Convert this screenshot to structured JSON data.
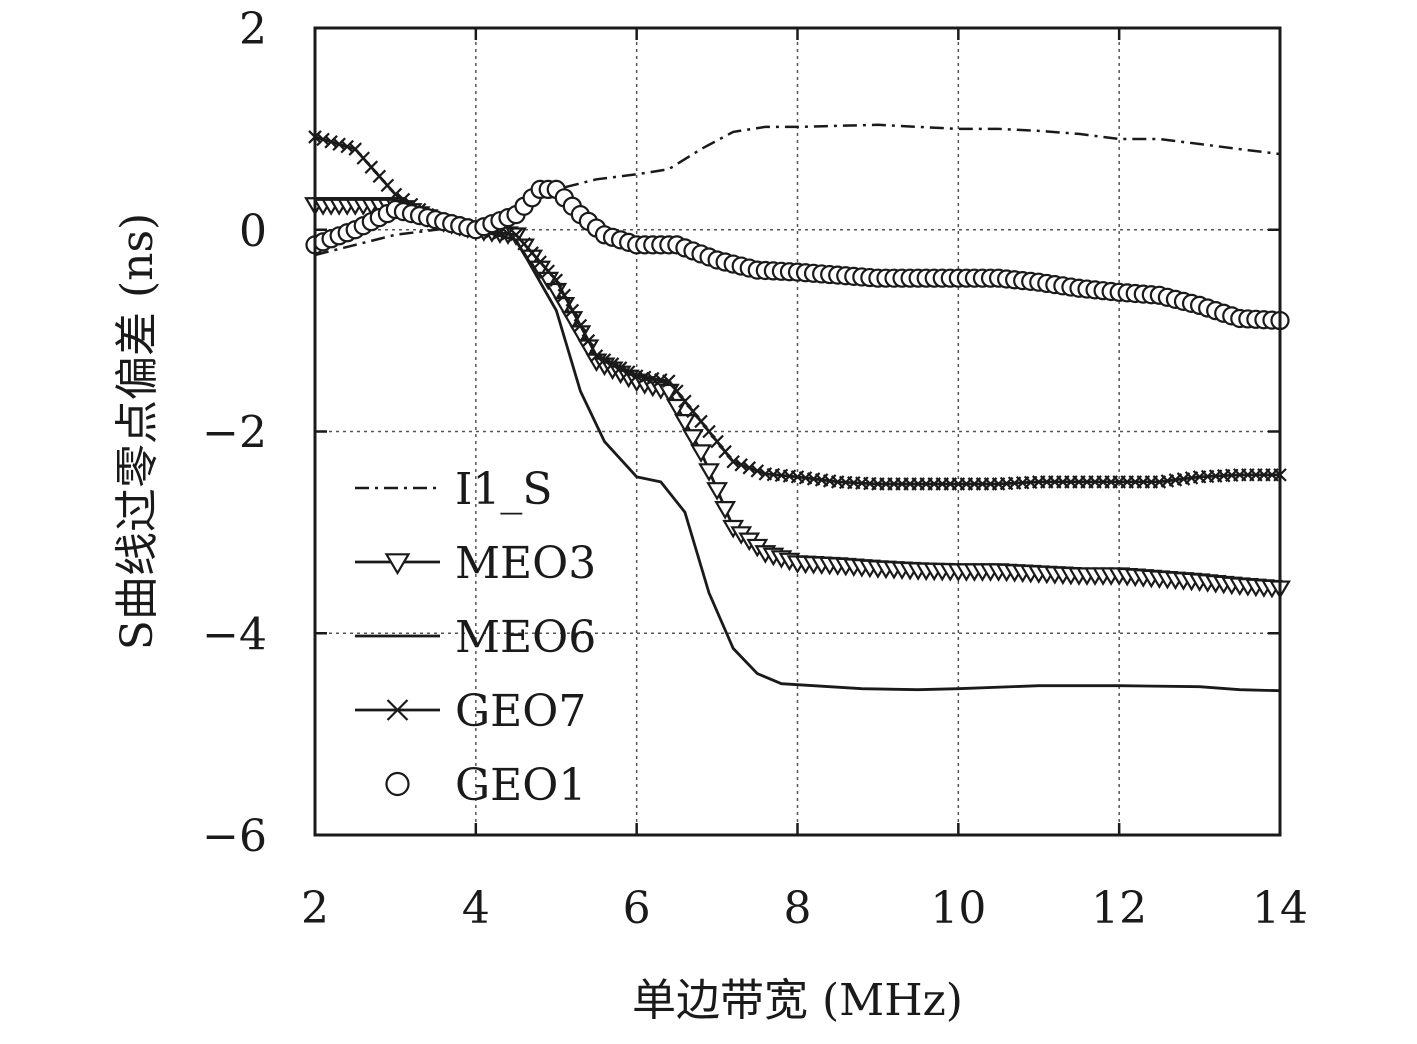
{
  "chart_data": {
    "type": "line",
    "xlabel": "单边带宽 (MHz)",
    "ylabel": "S曲线过零点偏差 (ns)",
    "xlim": [
      2,
      14
    ],
    "ylim": [
      -6,
      2
    ],
    "xticks": [
      2,
      4,
      6,
      8,
      10,
      12,
      14
    ],
    "yticks": [
      -6,
      -4,
      -2,
      0,
      2
    ],
    "xtick_labels": [
      "2",
      "4",
      "6",
      "8",
      "10",
      "12",
      "14"
    ],
    "ytick_labels": [
      "−6",
      "−4",
      "−2",
      "0",
      "2"
    ],
    "grid": true,
    "legend_position": "lower-left",
    "series": [
      {
        "name": "I1_S",
        "style": "dash-dot",
        "x": [
          2,
          2.5,
          3,
          3.5,
          4,
          4.5,
          5,
          5.5,
          6,
          6.4,
          6.8,
          7.2,
          7.6,
          8,
          8.5,
          9,
          9.5,
          10,
          10.5,
          11,
          11.5,
          12,
          12.5,
          13,
          13.5,
          14
        ],
        "y": [
          -0.25,
          -0.15,
          -0.05,
          0.0,
          0.05,
          0.2,
          0.4,
          0.5,
          0.55,
          0.6,
          0.8,
          0.97,
          1.02,
          1.02,
          1.03,
          1.04,
          1.02,
          1.0,
          1.0,
          0.98,
          0.95,
          0.9,
          0.9,
          0.85,
          0.8,
          0.75
        ]
      },
      {
        "name": "MEO3",
        "style": "solid-triangle-down",
        "x": [
          2,
          2.5,
          3,
          3.5,
          4,
          4.5,
          5,
          5.5,
          6,
          6.4,
          6.8,
          7.2,
          7.6,
          8,
          8.5,
          9,
          9.5,
          10,
          10.5,
          11,
          11.5,
          12,
          12.5,
          13,
          13.5,
          14
        ],
        "y": [
          0.25,
          0.25,
          0.25,
          0.1,
          0.0,
          -0.05,
          -0.6,
          -1.3,
          -1.5,
          -1.6,
          -2.2,
          -2.95,
          -3.2,
          -3.3,
          -3.32,
          -3.35,
          -3.37,
          -3.38,
          -3.38,
          -3.4,
          -3.42,
          -3.42,
          -3.45,
          -3.48,
          -3.52,
          -3.55
        ]
      },
      {
        "name": "MEO6",
        "style": "solid",
        "x": [
          2,
          2.5,
          3,
          3.5,
          4,
          4.5,
          5,
          5.3,
          5.6,
          6,
          6.3,
          6.6,
          6.9,
          7.2,
          7.5,
          7.8,
          8.2,
          8.8,
          9.5,
          10,
          11,
          12,
          13,
          13.5,
          14
        ],
        "y": [
          0.3,
          0.3,
          0.3,
          0.1,
          0.0,
          -0.1,
          -0.8,
          -1.6,
          -2.1,
          -2.45,
          -2.5,
          -2.8,
          -3.6,
          -4.15,
          -4.4,
          -4.5,
          -4.52,
          -4.55,
          -4.56,
          -4.55,
          -4.52,
          -4.52,
          -4.53,
          -4.56,
          -4.57
        ]
      },
      {
        "name": "GEO7",
        "style": "solid-x",
        "x": [
          2,
          2.5,
          3,
          3.5,
          4,
          4.5,
          5,
          5.5,
          6,
          6.4,
          6.8,
          7.2,
          7.6,
          8,
          8.5,
          9,
          9.5,
          10,
          10.5,
          11,
          11.5,
          12,
          12.5,
          13,
          13.5,
          14
        ],
        "y": [
          0.92,
          0.8,
          0.35,
          0.1,
          0.0,
          -0.05,
          -0.5,
          -1.25,
          -1.45,
          -1.5,
          -1.9,
          -2.3,
          -2.42,
          -2.45,
          -2.5,
          -2.52,
          -2.52,
          -2.52,
          -2.52,
          -2.5,
          -2.5,
          -2.5,
          -2.5,
          -2.45,
          -2.43,
          -2.43
        ]
      },
      {
        "name": "GEO1",
        "style": "markers-circle",
        "x": [
          2,
          2.5,
          3,
          3.5,
          4,
          4.5,
          4.8,
          5,
          5.3,
          5.6,
          6,
          6.5,
          7,
          7.5,
          8,
          8.5,
          9,
          9.5,
          10,
          10.5,
          11,
          11.5,
          12,
          12.5,
          13,
          13.5,
          14
        ],
        "y": [
          -0.15,
          0.0,
          0.2,
          0.1,
          0.0,
          0.15,
          0.4,
          0.4,
          0.15,
          -0.05,
          -0.15,
          -0.15,
          -0.3,
          -0.4,
          -0.42,
          -0.45,
          -0.48,
          -0.48,
          -0.48,
          -0.48,
          -0.52,
          -0.58,
          -0.62,
          -0.65,
          -0.75,
          -0.88,
          -0.9
        ]
      }
    ]
  }
}
